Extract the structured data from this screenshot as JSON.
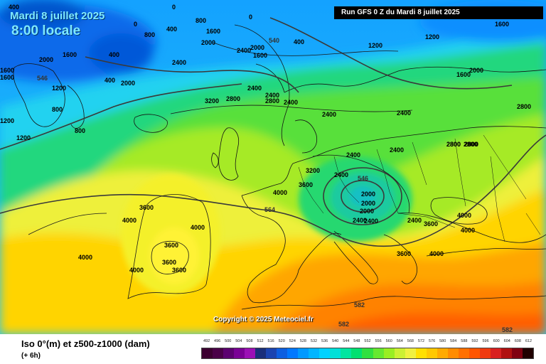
{
  "header": {
    "date_line": "Mardi 8 juillet 2025",
    "time_line": "8:00 locale",
    "run_label": "Run GFS 0 Z du Mardi 8 juillet 2025"
  },
  "copyright": "Copyright © 2025 Meteociel.fr",
  "footer": {
    "title": "Iso 0°(m) et z500-z1000 (dam)",
    "subtitle": "(+ 6h)"
  },
  "legend": {
    "values": [
      "492",
      "496",
      "500",
      "504",
      "508",
      "512",
      "516",
      "520",
      "524",
      "528",
      "532",
      "536",
      "540",
      "544",
      "548",
      "552",
      "556",
      "560",
      "564",
      "568",
      "572",
      "576",
      "580",
      "584",
      "588",
      "592",
      "596",
      "600",
      "604",
      "608",
      "612"
    ],
    "colors": [
      "#3b0030",
      "#4a0048",
      "#5c0070",
      "#7a0095",
      "#9b10b5",
      "#1a2f7a",
      "#1b44b0",
      "#0d5fe0",
      "#0078ff",
      "#0099ff",
      "#00b5ff",
      "#00d2ff",
      "#00e0d8",
      "#00e5a0",
      "#00e070",
      "#30e040",
      "#66e830",
      "#99ee22",
      "#ccf033",
      "#f0f040",
      "#ffe000",
      "#ffc800",
      "#ffaa00",
      "#ff8c00",
      "#ff7000",
      "#ff5500",
      "#f03a10",
      "#d82020",
      "#b01010",
      "#800010",
      "#200000"
    ]
  },
  "map_labels": {
    "iso0": [
      "400",
      "0",
      "0",
      "0",
      "400",
      "800",
      "800",
      "1600",
      "1600",
      "1200",
      "1600",
      "2000",
      "2000",
      "1600",
      "2000",
      "2400",
      "1600",
      "400",
      "400",
      "800",
      "1200",
      "1600",
      "1200",
      "800",
      "400",
      "2000",
      "2400",
      "2400",
      "2800",
      "2000",
      "2800",
      "2400",
      "2800",
      "2400",
      "2400",
      "3200",
      "2800",
      "2800",
      "2400",
      "2400",
      "2400",
      "2400",
      "2800",
      "3200",
      "3600",
      "2400",
      "2000",
      "2000",
      "2000",
      "2400",
      "2400",
      "3600",
      "3600",
      "4000",
      "4000",
      "3600",
      "3600",
      "3600",
      "4000",
      "4000",
      "4000",
      "4000",
      "3600",
      "4000",
      "4000",
      "2800",
      "1600",
      "1200",
      "1200"
    ],
    "z500": [
      "540",
      "546",
      "546",
      "564",
      "582",
      "582",
      "582"
    ]
  },
  "colors": {
    "text_accent": "#7ee8ff",
    "coast": "#141414"
  }
}
